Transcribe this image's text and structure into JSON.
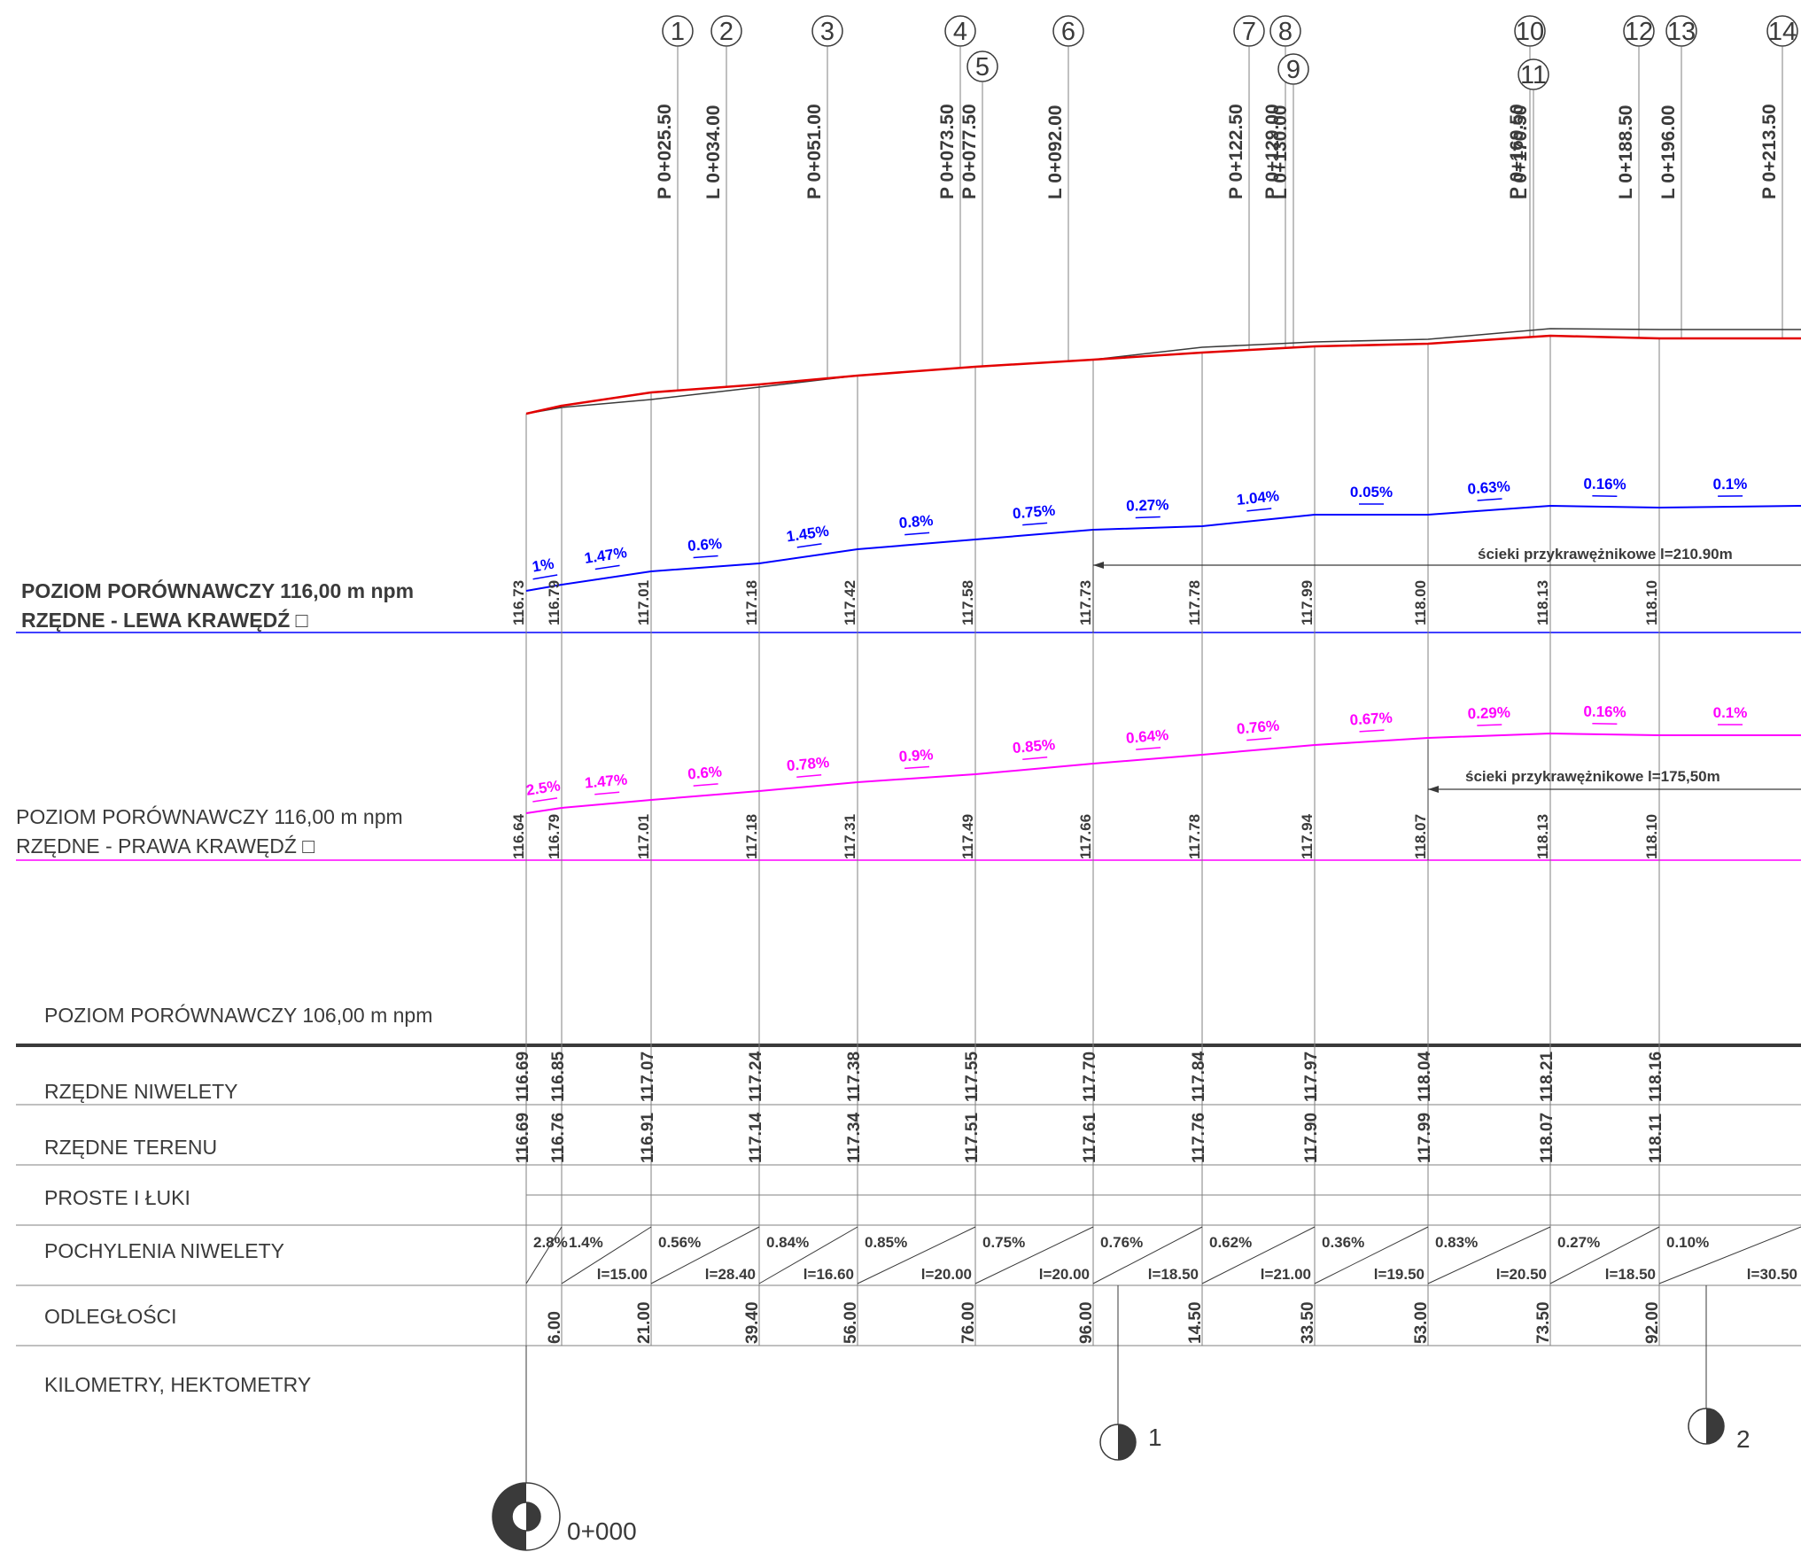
{
  "colors": {
    "red_line": "#e30000",
    "blue_line": "#0000ff",
    "magenta_line": "#ff00ff",
    "dark_line": "#3a3a3a",
    "grid_line": "#808080"
  },
  "labels": {
    "left_level": "POZIOM PORÓWNAWCZY 116,00 m npm",
    "left_title": "RZĘDNE - LEWA KRAWĘDŹ □",
    "right_level": "POZIOM PORÓWNAWCZY 116,00 m npm",
    "right_title": "RZĘDNE - PRAWA KRAWĘDŹ □",
    "main_level": "POZIOM PORÓWNAWCZY 106,00 m npm",
    "row_niwelety": "RZĘDNE NIWELETY",
    "row_terenu": "RZĘDNE TERENU",
    "row_proste": "PROSTE I ŁUKI",
    "row_pochylenia": "POCHYLENIA NIWELETY",
    "row_odleglosci": "ODLEGŁOŚCI",
    "row_km": "KILOMETRY, HEKTOMETRY",
    "gutter_left": "ścieki przykrawężnikowe l=210.90m",
    "gutter_right": "ścieki przykrawężnikowe l=175,50m",
    "km_start": "0+000",
    "hm_1": "1",
    "hm_2": "2"
  },
  "markers": [
    {
      "num": "1",
      "station": "P 0+025.50"
    },
    {
      "num": "2",
      "station": "L 0+034.00"
    },
    {
      "num": "3",
      "station": "P 0+051.00"
    },
    {
      "num": "4",
      "station": "P 0+073.50"
    },
    {
      "num": "5",
      "station": "P 0+077.50"
    },
    {
      "num": "6",
      "station": "L 0+092.00"
    },
    {
      "num": "7",
      "station": "P 0+122.50"
    },
    {
      "num": "8",
      "station": "P 0+129.00"
    },
    {
      "num": "9",
      "station": "L 0+130.00"
    },
    {
      "num": "10",
      "station": "P 0+169.50"
    },
    {
      "num": "11",
      "station": "L 0+170.50"
    },
    {
      "num": "12",
      "station": "L 0+188.50"
    },
    {
      "num": "13",
      "station": "L 0+196.00"
    },
    {
      "num": "14",
      "station": "P 0+213.50"
    }
  ],
  "left_edge": {
    "elevations": [
      "116.73",
      "116.79",
      "117.01",
      "117.18",
      "117.42",
      "117.58",
      "117.73",
      "117.78",
      "117.99",
      "118.00",
      "118.13",
      "118.10"
    ],
    "slopes": [
      "1%",
      "1.47%",
      "0.6%",
      "1.45%",
      "0.8%",
      "0.75%",
      "0.27%",
      "1.04%",
      "0.05%",
      "0.63%",
      "0.16%",
      "0.1%"
    ]
  },
  "right_edge": {
    "elevations": [
      "116.64",
      "116.79",
      "117.01",
      "117.18",
      "117.31",
      "117.49",
      "117.66",
      "117.78",
      "117.94",
      "118.07",
      "118.13",
      "118.10"
    ],
    "slopes": [
      "2.5%",
      "1.47%",
      "0.6%",
      "0.78%",
      "0.9%",
      "0.85%",
      "0.64%",
      "0.76%",
      "0.67%",
      "0.29%",
      "0.16%",
      "0.1%"
    ]
  },
  "rzedne_niwelety": [
    "116.69",
    "116.85",
    "117.07",
    "117.24",
    "117.38",
    "117.55",
    "117.70",
    "117.84",
    "117.97",
    "118.04",
    "118.21",
    "118.16"
  ],
  "rzedne_terenu": [
    "116.69",
    "116.76",
    "116.91",
    "117.14",
    "117.34",
    "117.51",
    "117.61",
    "117.76",
    "117.90",
    "117.99",
    "118.07",
    "118.11"
  ],
  "pochylenia": [
    {
      "slope": "2.8%",
      "length": ""
    },
    {
      "slope": "1.4%",
      "length": "l=15.00"
    },
    {
      "slope": "0.56%",
      "length": "l=28.40"
    },
    {
      "slope": "0.84%",
      "length": "l=16.60"
    },
    {
      "slope": "0.85%",
      "length": "l=20.00"
    },
    {
      "slope": "0.75%",
      "length": "l=20.00"
    },
    {
      "slope": "0.76%",
      "length": "l=18.50"
    },
    {
      "slope": "0.62%",
      "length": "l=21.00"
    },
    {
      "slope": "0.36%",
      "length": "l=19.50"
    },
    {
      "slope": "0.83%",
      "length": "l=20.50"
    },
    {
      "slope": "0.27%",
      "length": "l=18.50"
    },
    {
      "slope": "0.10%",
      "length": "l=30.50"
    }
  ],
  "odleglosci": [
    "6.00",
    "21.00",
    "39.40",
    "56.00",
    "76.00",
    "96.00",
    "14.50",
    "33.50",
    "53.00",
    "73.50",
    "92.00"
  ]
}
